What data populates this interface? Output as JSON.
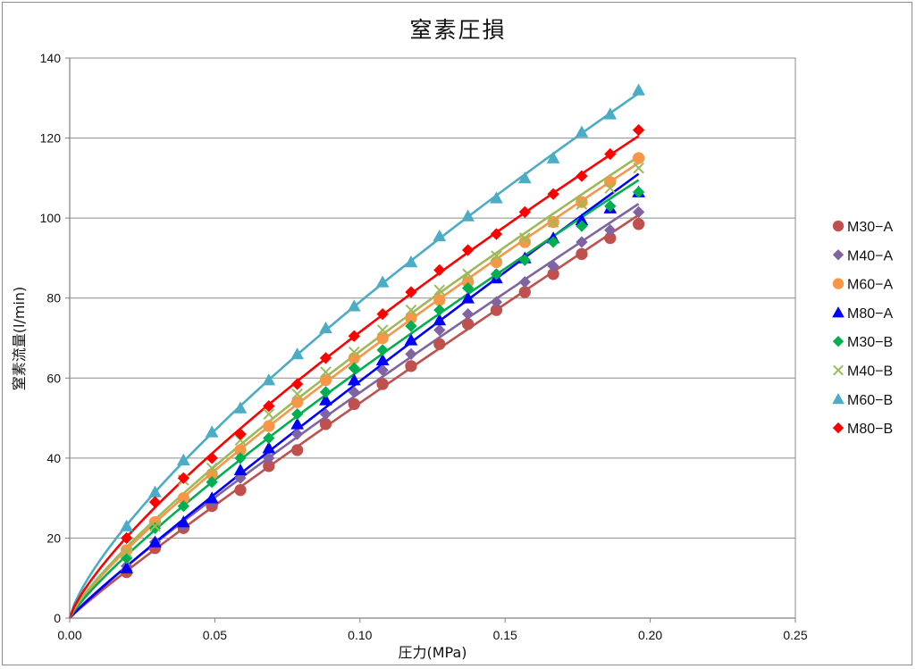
{
  "chart_data": {
    "type": "scatter",
    "title": "窒素圧損",
    "xlabel": "圧力(MPa)",
    "ylabel": "窒素流量(l/min)",
    "xlim": [
      0,
      0.25
    ],
    "ylim": [
      0,
      140
    ],
    "x_ticks": [
      "0.00",
      "0.05",
      "0.10",
      "0.15",
      "0.20",
      "0.25"
    ],
    "y_ticks": [
      "0",
      "20",
      "40",
      "60",
      "80",
      "100",
      "120",
      "140"
    ],
    "grid": "horizontal",
    "legend_position": "right",
    "x": [
      0.0196,
      0.0294,
      0.0392,
      0.049,
      0.0588,
      0.0686,
      0.0784,
      0.0882,
      0.098,
      0.1078,
      0.1176,
      0.1274,
      0.1372,
      0.147,
      0.1568,
      0.1666,
      0.1764,
      0.1862,
      0.196
    ],
    "series": [
      {
        "name": "M30−A",
        "color": "#c0504d",
        "marker": "circle",
        "values": [
          11.5,
          17.5,
          22.5,
          28,
          32,
          38,
          42,
          48.5,
          53.5,
          58.5,
          63,
          68.5,
          73.5,
          77,
          81.5,
          86,
          91,
          95,
          98.5
        ],
        "fit": [
          0,
          100
        ]
      },
      {
        "name": "M40−A",
        "color": "#8064a2",
        "marker": "diamond",
        "values": [
          13,
          19,
          23,
          29,
          35,
          40,
          46,
          51,
          56.5,
          62,
          66,
          72,
          76,
          79,
          84,
          88,
          94,
          97,
          101.5
        ],
        "fit": [
          0,
          103
        ]
      },
      {
        "name": "M60−A",
        "color": "#f79646",
        "marker": "circle",
        "values": [
          17,
          24,
          30,
          36,
          42,
          48,
          54,
          59.5,
          65,
          70,
          75,
          79.5,
          84,
          89,
          94,
          99,
          104,
          109,
          115
        ],
        "fit": [
          0,
          114
        ]
      },
      {
        "name": "M80−A",
        "color": "#0000ff",
        "marker": "triangle",
        "values": [
          12.5,
          19,
          24,
          30,
          37,
          42.5,
          48.5,
          54.5,
          59.5,
          64.5,
          69.5,
          74.5,
          80,
          85,
          90,
          95,
          99.5,
          102.5,
          106.5
        ],
        "fit": [
          0,
          111
        ]
      },
      {
        "name": "M30−B",
        "color": "#00b050",
        "marker": "diamond",
        "values": [
          15,
          22.5,
          28,
          34,
          40,
          45,
          51,
          56.5,
          62.5,
          67,
          73,
          77,
          82.5,
          86,
          89.5,
          94,
          98,
          103,
          106.5
        ],
        "fit": [
          0,
          109
        ]
      },
      {
        "name": "M40−B",
        "color": "#9bbb59",
        "marker": "x",
        "values": [
          16.5,
          23,
          34.5,
          37.5,
          44.5,
          51,
          56,
          61.5,
          66.5,
          72,
          77,
          82,
          86,
          90.5,
          95,
          99,
          103.5,
          107.5,
          112.5
        ],
        "fit": [
          0,
          113
        ]
      },
      {
        "name": "M60−B",
        "color": "#4bacc6",
        "marker": "triangle",
        "values": [
          23,
          31.5,
          39.5,
          46.5,
          52.5,
          59.5,
          66,
          72.5,
          78,
          84,
          89,
          95.5,
          100.5,
          105,
          110,
          115,
          121.5,
          126,
          132
        ],
        "fit": [
          0,
          131
        ]
      },
      {
        "name": "M80−B",
        "color": "#ff0000",
        "marker": "diamond",
        "values": [
          20,
          29,
          35,
          40,
          46,
          53,
          58.5,
          65,
          70.5,
          76,
          81.5,
          87,
          92,
          96,
          101.5,
          106,
          110.5,
          116,
          122
        ],
        "fit": [
          0,
          122
        ]
      }
    ]
  }
}
